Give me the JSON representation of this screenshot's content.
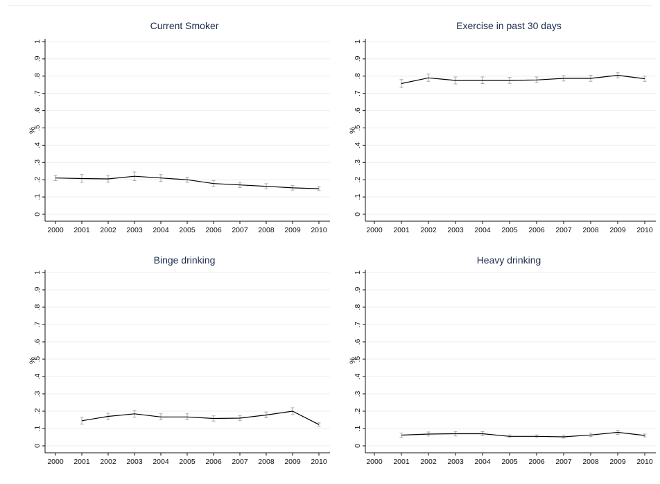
{
  "chart_data": [
    {
      "type": "line",
      "title": "Current Smoker",
      "ylabel": "%",
      "xlabel": "",
      "x": [
        2000,
        2001,
        2002,
        2003,
        2004,
        2005,
        2006,
        2007,
        2008,
        2009,
        2010
      ],
      "x_ticks": [
        "2000",
        "2001",
        "2002",
        "2003",
        "2004",
        "2005",
        "2006",
        "2007",
        "2008",
        "2009",
        "2010"
      ],
      "y_ticks": [
        "0",
        ".1",
        ".2",
        ".3",
        ".4",
        ".5",
        ".6",
        ".7",
        ".8",
        ".9",
        "1"
      ],
      "y_tick_values": [
        0,
        0.1,
        0.2,
        0.3,
        0.4,
        0.5,
        0.6,
        0.7,
        0.8,
        0.9,
        1
      ],
      "xlim": [
        2000,
        2010
      ],
      "ylim": [
        0,
        1
      ],
      "grid": true,
      "series": [
        {
          "values": [
            0.21,
            0.207,
            0.205,
            0.22,
            0.21,
            0.2,
            0.178,
            0.17,
            0.162,
            0.153,
            0.148
          ],
          "ci_low": [
            0.195,
            0.185,
            0.185,
            0.195,
            0.19,
            0.185,
            0.162,
            0.155,
            0.147,
            0.14,
            0.137
          ],
          "ci_high": [
            0.225,
            0.23,
            0.225,
            0.245,
            0.23,
            0.215,
            0.195,
            0.185,
            0.177,
            0.167,
            0.16
          ]
        }
      ],
      "colors": {
        "line": "#000000",
        "ci": "#a8a8a8",
        "grid": "#ececec"
      }
    },
    {
      "type": "line",
      "title": "Exercise in past 30 days",
      "ylabel": "%",
      "xlabel": "",
      "x": [
        2001,
        2002,
        2003,
        2004,
        2005,
        2006,
        2007,
        2008,
        2009,
        2010
      ],
      "x_ticks": [
        "2000",
        "2001",
        "2002",
        "2003",
        "2004",
        "2005",
        "2006",
        "2007",
        "2008",
        "2009",
        "2010"
      ],
      "y_ticks": [
        "0",
        ".1",
        ".2",
        ".3",
        ".4",
        ".5",
        ".6",
        ".7",
        ".8",
        ".9",
        "1"
      ],
      "y_tick_values": [
        0,
        0.1,
        0.2,
        0.3,
        0.4,
        0.5,
        0.6,
        0.7,
        0.8,
        0.9,
        1
      ],
      "xlim": [
        2000,
        2010
      ],
      "ylim": [
        0,
        1
      ],
      "grid": true,
      "series": [
        {
          "values": [
            0.757,
            0.79,
            0.775,
            0.775,
            0.775,
            0.778,
            0.787,
            0.787,
            0.805,
            0.785
          ],
          "ci_low": [
            0.735,
            0.77,
            0.755,
            0.757,
            0.758,
            0.762,
            0.772,
            0.77,
            0.79,
            0.77
          ],
          "ci_high": [
            0.78,
            0.812,
            0.795,
            0.795,
            0.793,
            0.795,
            0.803,
            0.805,
            0.82,
            0.8
          ]
        }
      ],
      "colors": {
        "line": "#000000",
        "ci": "#a8a8a8",
        "grid": "#ececec"
      }
    },
    {
      "type": "line",
      "title": "Binge drinking",
      "ylabel": "%",
      "xlabel": "",
      "x": [
        2001,
        2002,
        2003,
        2004,
        2005,
        2006,
        2007,
        2008,
        2009,
        2010
      ],
      "x_ticks": [
        "2000",
        "2001",
        "2002",
        "2003",
        "2004",
        "2005",
        "2006",
        "2007",
        "2008",
        "2009",
        "2010"
      ],
      "y_ticks": [
        "0",
        ".1",
        ".2",
        ".3",
        ".4",
        ".5",
        ".6",
        ".7",
        ".8",
        ".9",
        "1"
      ],
      "y_tick_values": [
        0,
        0.1,
        0.2,
        0.3,
        0.4,
        0.5,
        0.6,
        0.7,
        0.8,
        0.9,
        1
      ],
      "xlim": [
        2000,
        2010
      ],
      "ylim": [
        0,
        1
      ],
      "grid": true,
      "series": [
        {
          "values": [
            0.145,
            0.17,
            0.185,
            0.167,
            0.167,
            0.158,
            0.16,
            0.178,
            0.2,
            0.123
          ],
          "ci_low": [
            0.125,
            0.152,
            0.165,
            0.15,
            0.15,
            0.143,
            0.145,
            0.162,
            0.18,
            0.113
          ],
          "ci_high": [
            0.165,
            0.188,
            0.205,
            0.185,
            0.185,
            0.173,
            0.175,
            0.195,
            0.22,
            0.133
          ]
        }
      ],
      "colors": {
        "line": "#000000",
        "ci": "#a8a8a8",
        "grid": "#ececec"
      }
    },
    {
      "type": "line",
      "title": "Heavy drinking",
      "ylabel": "%",
      "xlabel": "",
      "x": [
        2001,
        2002,
        2003,
        2004,
        2005,
        2006,
        2007,
        2008,
        2009,
        2010
      ],
      "x_ticks": [
        "2000",
        "2001",
        "2002",
        "2003",
        "2004",
        "2005",
        "2006",
        "2007",
        "2008",
        "2009",
        "2010"
      ],
      "y_ticks": [
        "0",
        ".1",
        ".2",
        ".3",
        ".4",
        ".5",
        ".6",
        ".7",
        ".8",
        ".9",
        "1"
      ],
      "y_tick_values": [
        0,
        0.1,
        0.2,
        0.3,
        0.4,
        0.5,
        0.6,
        0.7,
        0.8,
        0.9,
        1
      ],
      "xlim": [
        2000,
        2010
      ],
      "ylim": [
        0,
        1
      ],
      "grid": true,
      "series": [
        {
          "values": [
            0.062,
            0.068,
            0.07,
            0.07,
            0.055,
            0.055,
            0.052,
            0.063,
            0.078,
            0.06
          ],
          "ci_low": [
            0.05,
            0.057,
            0.057,
            0.058,
            0.047,
            0.047,
            0.045,
            0.053,
            0.066,
            0.052
          ],
          "ci_high": [
            0.074,
            0.08,
            0.083,
            0.082,
            0.063,
            0.063,
            0.06,
            0.073,
            0.09,
            0.068
          ]
        }
      ],
      "colors": {
        "line": "#000000",
        "ci": "#a8a8a8",
        "grid": "#ececec"
      }
    }
  ]
}
